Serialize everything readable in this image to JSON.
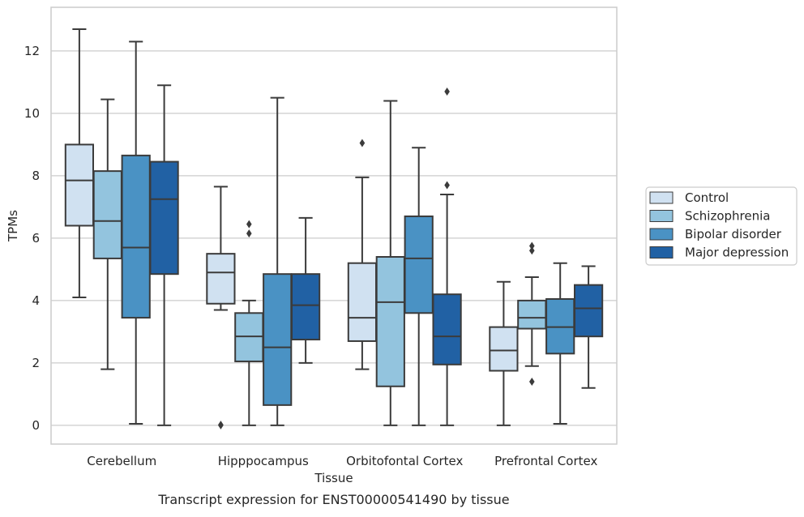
{
  "caption": "Transcript expression for ENST00000541490 by tissue",
  "chart_data": {
    "type": "box",
    "title": "",
    "xlabel": "Tissue",
    "ylabel": "TPMs",
    "ylim": [
      -0.6,
      13.4
    ],
    "yticks": [
      0,
      2,
      4,
      6,
      8,
      10,
      12
    ],
    "grid": "horizontal",
    "legend_position": "right",
    "categories": [
      "Cerebellum",
      "Hipppocampus",
      "Orbitofontal Cortex",
      "Prefrontal Cortex"
    ],
    "series": [
      {
        "name": "Control",
        "color": "#d0e1f1",
        "boxes": [
          {
            "whisker_low": 4.1,
            "q1": 6.4,
            "median": 7.85,
            "q3": 9.0,
            "whisker_high": 12.7,
            "outliers": []
          },
          {
            "whisker_low": 3.7,
            "q1": 3.9,
            "median": 4.9,
            "q3": 5.5,
            "whisker_high": 7.65,
            "outliers": [
              0.0,
              0.02
            ]
          },
          {
            "whisker_low": 1.8,
            "q1": 2.7,
            "median": 3.45,
            "q3": 5.2,
            "whisker_high": 7.95,
            "outliers": [
              9.05
            ]
          },
          {
            "whisker_low": 0.0,
            "q1": 1.75,
            "median": 2.4,
            "q3": 3.15,
            "whisker_high": 4.6,
            "outliers": []
          }
        ]
      },
      {
        "name": "Schizophrenia",
        "color": "#93c4de",
        "boxes": [
          {
            "whisker_low": 1.8,
            "q1": 5.35,
            "median": 6.55,
            "q3": 8.15,
            "whisker_high": 10.45,
            "outliers": []
          },
          {
            "whisker_low": 0.0,
            "q1": 2.05,
            "median": 2.85,
            "q3": 3.6,
            "whisker_high": 4.0,
            "outliers": [
              6.15,
              6.45
            ]
          },
          {
            "whisker_low": 0.0,
            "q1": 1.25,
            "median": 3.95,
            "q3": 5.4,
            "whisker_high": 10.4,
            "outliers": []
          },
          {
            "whisker_low": 1.9,
            "q1": 3.1,
            "median": 3.45,
            "q3": 4.0,
            "whisker_high": 4.75,
            "outliers": [
              1.4,
              5.6,
              5.75
            ]
          }
        ]
      },
      {
        "name": "Bipolar disorder",
        "color": "#4a92c4",
        "boxes": [
          {
            "whisker_low": 0.05,
            "q1": 3.45,
            "median": 5.7,
            "q3": 8.65,
            "whisker_high": 12.3,
            "outliers": []
          },
          {
            "whisker_low": 0.0,
            "q1": 0.65,
            "median": 2.5,
            "q3": 4.85,
            "whisker_high": 10.5,
            "outliers": []
          },
          {
            "whisker_low": 0.0,
            "q1": 3.6,
            "median": 5.35,
            "q3": 6.7,
            "whisker_high": 8.9,
            "outliers": []
          },
          {
            "whisker_low": 0.05,
            "q1": 2.3,
            "median": 3.15,
            "q3": 4.05,
            "whisker_high": 5.2,
            "outliers": []
          }
        ]
      },
      {
        "name": "Major depression",
        "color": "#2161a4",
        "boxes": [
          {
            "whisker_low": 0.0,
            "q1": 4.85,
            "median": 7.25,
            "q3": 8.45,
            "whisker_high": 10.9,
            "outliers": []
          },
          {
            "whisker_low": 2.0,
            "q1": 2.75,
            "median": 3.85,
            "q3": 4.85,
            "whisker_high": 6.65,
            "outliers": []
          },
          {
            "whisker_low": 0.0,
            "q1": 1.95,
            "median": 2.85,
            "q3": 4.2,
            "whisker_high": 7.4,
            "outliers": [
              7.7,
              10.7
            ]
          },
          {
            "whisker_low": 1.2,
            "q1": 2.85,
            "median": 3.75,
            "q3": 4.5,
            "whisker_high": 5.1,
            "outliers": []
          }
        ]
      }
    ]
  }
}
